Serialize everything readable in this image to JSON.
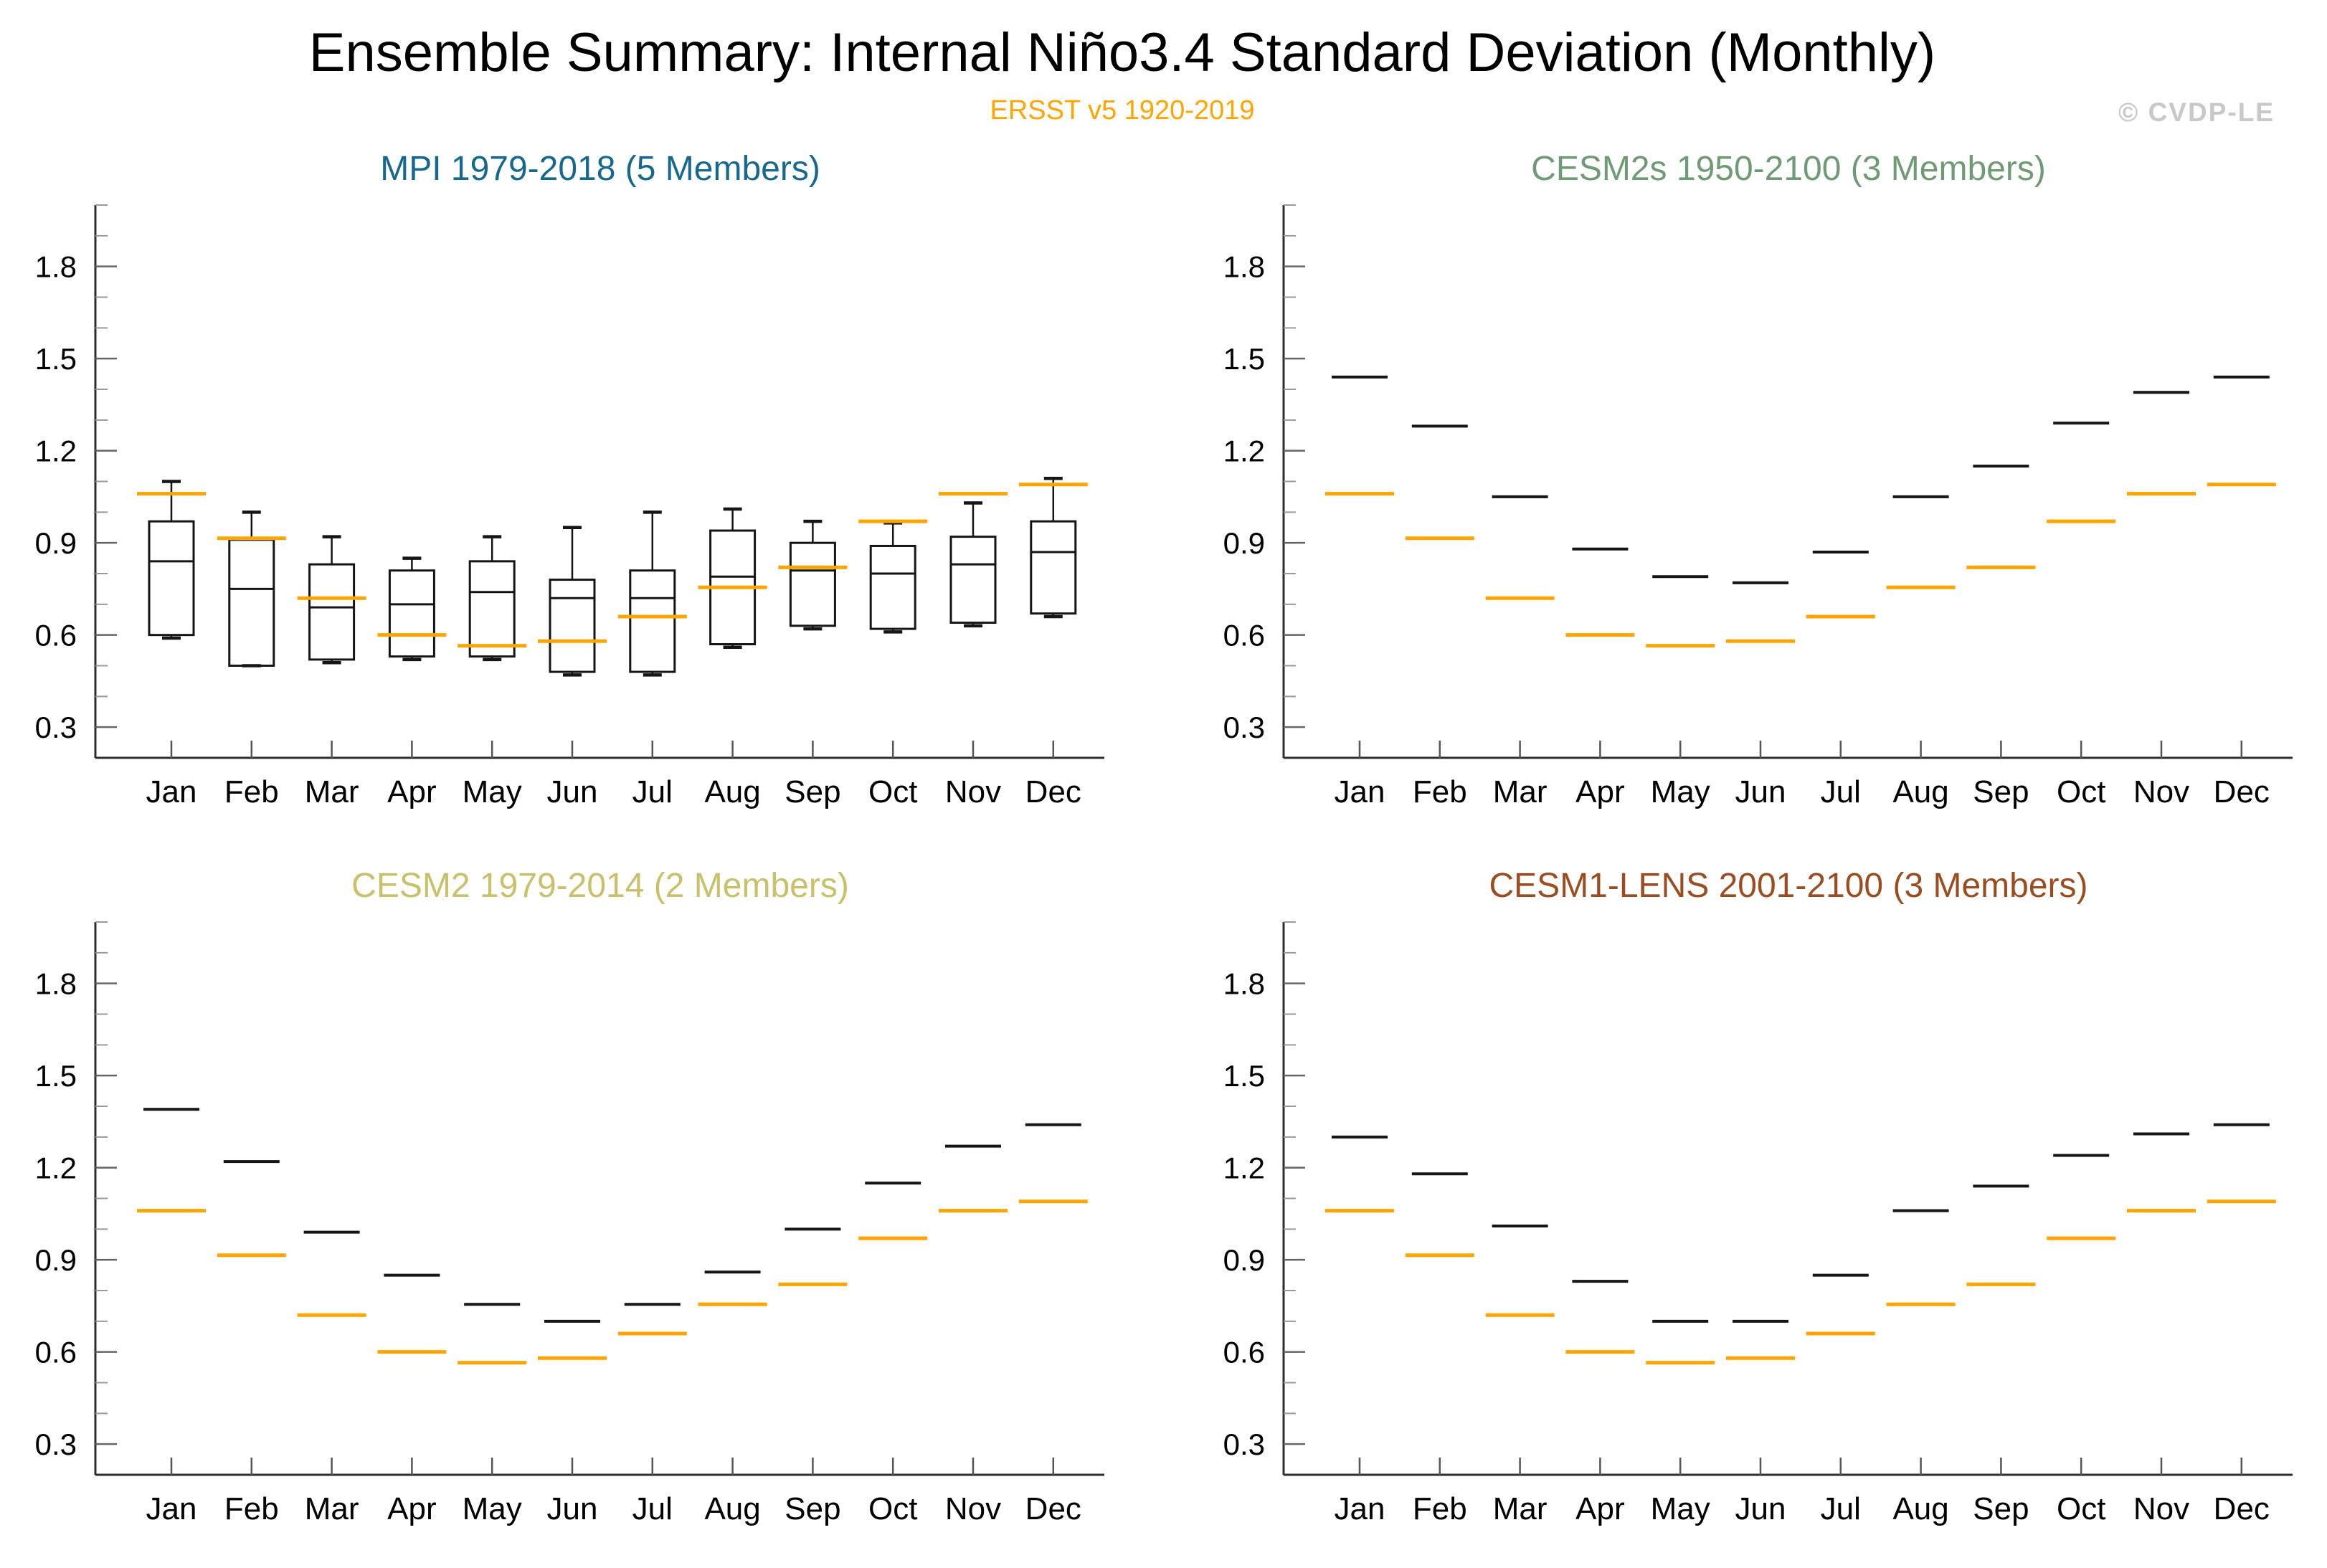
{
  "header": {
    "title": "Ensemble Summary: Internal Niño3.4 Standard Deviation (Monthly)",
    "subtitle": "ERSST v5 1920-2019",
    "watermark": "© CVDP-LE"
  },
  "months": [
    "Jan",
    "Feb",
    "Mar",
    "Apr",
    "May",
    "Jun",
    "Jul",
    "Aug",
    "Sep",
    "Oct",
    "Nov",
    "Dec"
  ],
  "y_axis": {
    "range": [
      0.2,
      2.0
    ],
    "minor_step": 0.1,
    "major_tick_labels": [
      "0.3",
      "0.6",
      "0.9",
      "1.2",
      "1.5",
      "1.8"
    ],
    "grid": false
  },
  "observed": {
    "label": "ERSST v5 1920-2019",
    "color": "#FFA400",
    "values": [
      1.06,
      0.915,
      0.72,
      0.6,
      0.565,
      0.58,
      0.66,
      0.755,
      0.82,
      0.97,
      1.06,
      1.09
    ]
  },
  "chart_data": [
    {
      "id": "mpi",
      "type": "box",
      "title": "MPI 1979-2018 (5 Members)",
      "title_color": "#16688E",
      "ylim": [
        0.2,
        2.0
      ],
      "boxes": [
        {
          "month": "Jan",
          "min": 0.59,
          "q1": 0.6,
          "median": 0.84,
          "q3": 0.97,
          "max": 1.1
        },
        {
          "month": "Feb",
          "min": 0.5,
          "q1": 0.5,
          "median": 0.75,
          "q3": 0.91,
          "max": 1.0
        },
        {
          "month": "Mar",
          "min": 0.51,
          "q1": 0.52,
          "median": 0.69,
          "q3": 0.83,
          "max": 0.92
        },
        {
          "month": "Apr",
          "min": 0.52,
          "q1": 0.53,
          "median": 0.7,
          "q3": 0.81,
          "max": 0.85
        },
        {
          "month": "May",
          "min": 0.52,
          "q1": 0.53,
          "median": 0.74,
          "q3": 0.84,
          "max": 0.92
        },
        {
          "month": "Jun",
          "min": 0.47,
          "q1": 0.48,
          "median": 0.72,
          "q3": 0.78,
          "max": 0.95
        },
        {
          "month": "Jul",
          "min": 0.47,
          "q1": 0.48,
          "median": 0.72,
          "q3": 0.81,
          "max": 1.0
        },
        {
          "month": "Aug",
          "min": 0.56,
          "q1": 0.57,
          "median": 0.79,
          "q3": 0.94,
          "max": 1.01
        },
        {
          "month": "Sep",
          "min": 0.62,
          "q1": 0.63,
          "median": 0.81,
          "q3": 0.9,
          "max": 0.97
        },
        {
          "month": "Oct",
          "min": 0.61,
          "q1": 0.62,
          "median": 0.8,
          "q3": 0.89,
          "max": 0.965
        },
        {
          "month": "Nov",
          "min": 0.63,
          "q1": 0.64,
          "median": 0.83,
          "q3": 0.92,
          "max": 1.03
        },
        {
          "month": "Dec",
          "min": 0.66,
          "q1": 0.67,
          "median": 0.87,
          "q3": 0.97,
          "max": 1.11
        }
      ],
      "obs_values": [
        1.06,
        0.915,
        0.72,
        0.6,
        0.565,
        0.58,
        0.66,
        0.755,
        0.82,
        0.97,
        1.06,
        1.09
      ]
    },
    {
      "id": "cesm2s",
      "type": "dash",
      "title": "CESM2s 1950-2100 (3 Members)",
      "title_color": "#6F9B74",
      "ylim": [
        0.2,
        2.0
      ],
      "model_values": [
        1.44,
        1.28,
        1.05,
        0.88,
        0.79,
        0.77,
        0.87,
        1.05,
        1.15,
        1.29,
        1.39,
        1.44
      ],
      "obs_values": [
        1.06,
        0.915,
        0.72,
        0.6,
        0.565,
        0.58,
        0.66,
        0.755,
        0.82,
        0.97,
        1.06,
        1.09
      ]
    },
    {
      "id": "cesm2",
      "type": "dash",
      "title": "CESM2 1979-2014 (2 Members)",
      "title_color": "#C9C06A",
      "ylim": [
        0.2,
        2.0
      ],
      "model_values": [
        1.39,
        1.22,
        0.99,
        0.85,
        0.755,
        0.7,
        0.755,
        0.86,
        1.0,
        1.15,
        1.27,
        1.34
      ],
      "obs_values": [
        1.06,
        0.915,
        0.72,
        0.6,
        0.565,
        0.58,
        0.66,
        0.755,
        0.82,
        0.97,
        1.06,
        1.09
      ]
    },
    {
      "id": "cesm1-lens",
      "type": "dash",
      "title": "CESM1-LENS 2001-2100 (3 Members)",
      "title_color": "#9C4D20",
      "ylim": [
        0.2,
        2.0
      ],
      "model_values": [
        1.3,
        1.18,
        1.01,
        0.83,
        0.7,
        0.7,
        0.85,
        1.06,
        1.14,
        1.24,
        1.31,
        1.34
      ],
      "obs_values": [
        1.06,
        0.915,
        0.72,
        0.6,
        0.565,
        0.58,
        0.66,
        0.755,
        0.82,
        0.97,
        1.06,
        1.09
      ]
    }
  ]
}
